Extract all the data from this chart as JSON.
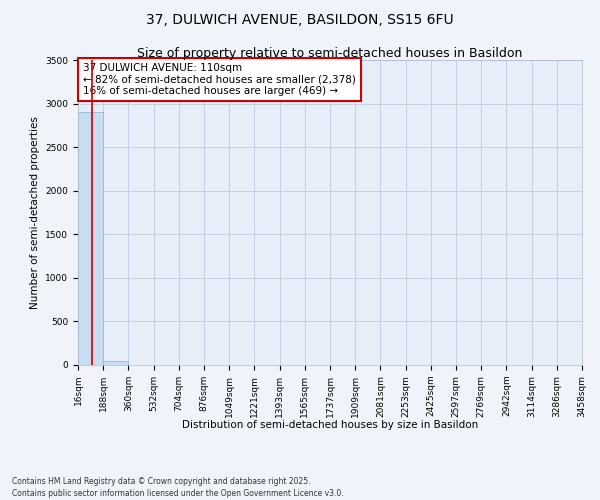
{
  "title1": "37, DULWICH AVENUE, BASILDON, SS15 6FU",
  "title2": "Size of property relative to semi-detached houses in Basildon",
  "xlabel": "Distribution of semi-detached houses by size in Basildon",
  "ylabel": "Number of semi-detached properties",
  "footer": "Contains HM Land Registry data © Crown copyright and database right 2025.\nContains public sector information licensed under the Open Government Licence v3.0.",
  "annotation_title": "37 DULWICH AVENUE: 110sqm",
  "annotation_line1": "← 82% of semi-detached houses are smaller (2,378)",
  "annotation_line2": "16% of semi-detached houses are larger (469) →",
  "property_size": 110,
  "bin_edges": [
    16,
    188,
    360,
    532,
    704,
    876,
    1049,
    1221,
    1393,
    1565,
    1737,
    1909,
    2081,
    2253,
    2425,
    2597,
    2769,
    2942,
    3114,
    3286,
    3458
  ],
  "bin_labels": [
    "16sqm",
    "188sqm",
    "360sqm",
    "532sqm",
    "704sqm",
    "876sqm",
    "1049sqm",
    "1221sqm",
    "1393sqm",
    "1565sqm",
    "1737sqm",
    "1909sqm",
    "2081sqm",
    "2253sqm",
    "2425sqm",
    "2597sqm",
    "2769sqm",
    "2942sqm",
    "3114sqm",
    "3286sqm",
    "3458sqm"
  ],
  "bar_heights": [
    2900,
    50,
    2,
    1,
    1,
    0,
    0,
    0,
    0,
    0,
    0,
    0,
    0,
    0,
    0,
    0,
    0,
    0,
    0,
    0
  ],
  "bar_color": "#c8ddf0",
  "bar_edge_color": "#8ab0d0",
  "red_line_x": 110,
  "ylim": [
    0,
    3500
  ],
  "yticks": [
    0,
    500,
    1000,
    1500,
    2000,
    2500,
    3000,
    3500
  ],
  "bg_color": "#f0f4fa",
  "plot_bg_color": "#e8eef8",
  "grid_color": "#c0cce0",
  "annotation_box_color": "#ffffff",
  "annotation_box_edge": "#cc0000",
  "red_line_color": "#cc0000",
  "title_fontsize": 10,
  "subtitle_fontsize": 9,
  "axis_label_fontsize": 7.5,
  "tick_fontsize": 6.5,
  "annotation_fontsize": 7.5,
  "footer_fontsize": 5.5
}
